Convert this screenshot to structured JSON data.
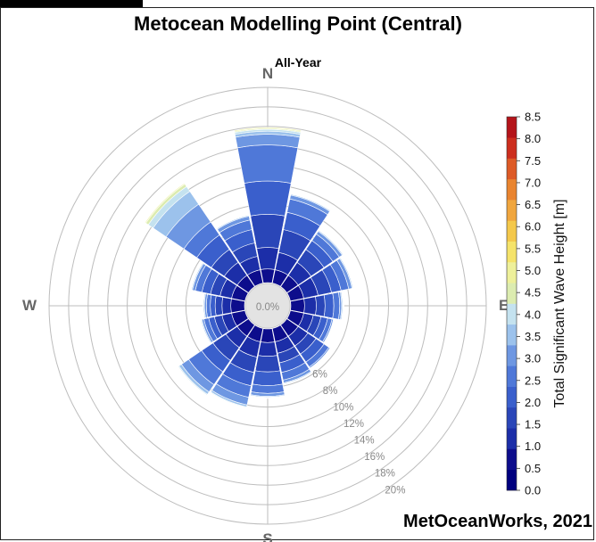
{
  "title": "Metocean Modelling Point (Central)",
  "subtitle": "All-Year",
  "credit": "MetOceanWorks, 2021",
  "chart_data": {
    "type": "windrose",
    "center_label": "0.0%",
    "directions": [
      {
        "label": "N",
        "angle": 0
      },
      {
        "label": "E",
        "angle": 90
      },
      {
        "label": "S",
        "angle": 180
      },
      {
        "label": "W",
        "angle": 270
      }
    ],
    "radial_ticks": [
      {
        "value": 6,
        "label": "6%"
      },
      {
        "value": 8,
        "label": "8%"
      },
      {
        "value": 10,
        "label": "10%"
      },
      {
        "value": 12,
        "label": "12%"
      },
      {
        "value": 14,
        "label": "14%"
      },
      {
        "value": 16,
        "label": "16%"
      },
      {
        "value": 18,
        "label": "18%"
      },
      {
        "value": 20,
        "label": "20%"
      }
    ],
    "radial_range": [
      0,
      20
    ],
    "bins": [
      "0.0-0.5",
      "0.5-1.0",
      "1.0-1.5",
      "1.5-2.0",
      "2.0-2.5",
      "2.5-3.0",
      "3.0-3.5",
      "3.5-4.0",
      "4.0-4.5",
      "4.5-5.0"
    ],
    "bin_colors": [
      "#0d0d8c",
      "#1c2ea8",
      "#2a46b8",
      "#3a5fcc",
      "#4f78d8",
      "#6e97e2",
      "#9cc2ec",
      "#c4e2ef",
      "#dcecb0",
      "#eef09a"
    ],
    "sectors": [
      {
        "direction": 0,
        "cumulative": [
          1.4,
          3.6,
          7.0,
          10.4,
          14.1,
          15.2,
          15.5,
          15.7,
          15.8,
          15.9
        ]
      },
      {
        "direction": 22.5,
        "cumulative": [
          1.4,
          3.2,
          5.6,
          7.4,
          8.8,
          9.2,
          9.3,
          9.35,
          9.4,
          9.45
        ]
      },
      {
        "direction": 45,
        "cumulative": [
          1.4,
          3.0,
          4.6,
          5.7,
          6.5,
          6.85,
          6.95,
          7.0,
          7.05,
          7.1
        ]
      },
      {
        "direction": 67.5,
        "cumulative": [
          1.4,
          2.9,
          4.3,
          5.3,
          6.1,
          6.45,
          6.55,
          6.6,
          6.65,
          6.7
        ]
      },
      {
        "direction": 90,
        "cumulative": [
          1.4,
          2.6,
          3.5,
          4.4,
          5.0,
          5.2,
          5.3,
          5.35,
          5.4,
          5.45
        ]
      },
      {
        "direction": 112.5,
        "cumulative": [
          1.4,
          2.4,
          3.2,
          3.9,
          4.35,
          4.5,
          4.55,
          4.58,
          4.6,
          4.62
        ]
      },
      {
        "direction": 135,
        "cumulative": [
          1.4,
          2.6,
          3.6,
          4.6,
          5.2,
          5.35,
          5.4,
          5.42,
          5.45,
          5.48
        ]
      },
      {
        "direction": 157.5,
        "cumulative": [
          1.4,
          2.6,
          3.6,
          4.6,
          5.4,
          5.7,
          5.8,
          5.85,
          5.9,
          5.92
        ]
      },
      {
        "direction": 180,
        "cumulative": [
          1.4,
          2.8,
          4.4,
          5.8,
          6.6,
          6.9,
          7.0,
          7.05,
          7.1,
          7.12
        ]
      },
      {
        "direction": 202.5,
        "cumulative": [
          1.4,
          3.0,
          4.6,
          6.0,
          7.2,
          8.0,
          8.2,
          8.28,
          8.32,
          8.35
        ]
      },
      {
        "direction": 225,
        "cumulative": [
          1.4,
          2.8,
          4.4,
          5.8,
          7.4,
          8.3,
          8.6,
          8.7,
          8.75,
          8.8
        ]
      },
      {
        "direction": 247.5,
        "cumulative": [
          1.4,
          2.4,
          3.2,
          3.8,
          4.3,
          4.5,
          4.6,
          4.62,
          4.65,
          4.68
        ]
      },
      {
        "direction": 270,
        "cumulative": [
          1.4,
          2.3,
          3.0,
          3.5,
          3.9,
          4.1,
          4.2,
          4.22,
          4.25,
          4.28
        ]
      },
      {
        "direction": 292.5,
        "cumulative": [
          1.4,
          2.6,
          3.6,
          4.5,
          5.2,
          5.5,
          5.6,
          5.65,
          5.7,
          5.72
        ]
      },
      {
        "direction": 315,
        "cumulative": [
          1.4,
          3.0,
          4.6,
          6.4,
          8.0,
          10.2,
          11.8,
          12.4,
          12.7,
          12.8
        ]
      },
      {
        "direction": 337.5,
        "cumulative": [
          1.4,
          2.8,
          4.2,
          5.6,
          6.6,
          7.0,
          7.1,
          7.15,
          7.2,
          7.22
        ]
      }
    ],
    "colorbar": {
      "label": "Total Significant Wave Height [m]",
      "min": 0,
      "max": 8.5,
      "ticks": [
        "0.0",
        "0.5",
        "1.0",
        "1.5",
        "2.0",
        "2.5",
        "3.0",
        "3.5",
        "4.0",
        "4.5",
        "5.0",
        "5.5",
        "6.0",
        "6.5",
        "7.0",
        "7.5",
        "8.0",
        "8.5"
      ],
      "colors": [
        "#00007f",
        "#0d0d8c",
        "#1c2ea8",
        "#2a46b8",
        "#3a5fcc",
        "#4f78d8",
        "#6e97e2",
        "#9cc2ec",
        "#c4e2ef",
        "#dcecb0",
        "#eef09a",
        "#f5e36a",
        "#f4c84b",
        "#f0a63e",
        "#e9842f",
        "#dd5a26",
        "#cc2e1e",
        "#b4141a"
      ]
    }
  }
}
